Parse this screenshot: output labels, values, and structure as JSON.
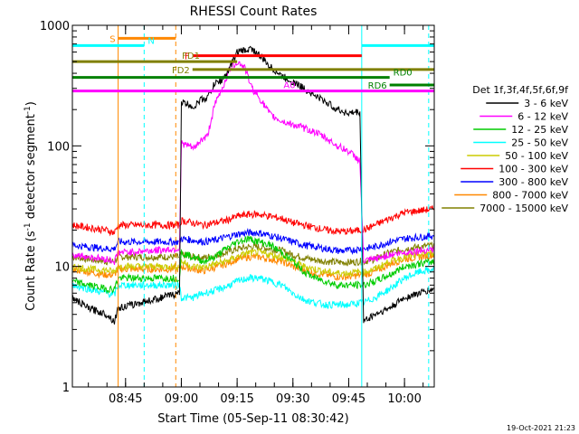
{
  "chart_data": {
    "type": "line",
    "title": "RHESSI Count Rates",
    "xlabel": "Start Time (05-Sep-11 08:30:42)",
    "ylabel": "Count Rate (s⁻¹ detector segment⁻¹)",
    "ylabel_parts": [
      "Count Rate (s",
      "-1",
      " detector segment",
      "-1",
      ")"
    ],
    "y_scale": "log",
    "ylim": [
      1,
      1000
    ],
    "xlim": [
      "08:30:42",
      "10:08:00"
    ],
    "y_ticks": [
      "1",
      "10",
      "100",
      "1000"
    ],
    "x_ticks": [
      "08:45",
      "09:00",
      "09:15",
      "09:30",
      "09:45",
      "10:00"
    ],
    "timestamp": "19-Oct-2021 21:23",
    "legend": {
      "title": "Det 1f,3f,4f,5f,6f,9f",
      "placement": "right",
      "entries": [
        {
          "name": "3 - 6 keV",
          "color": "#000000"
        },
        {
          "name": "6 - 12 keV",
          "color": "#ff00ff"
        },
        {
          "name": "12 - 25 keV",
          "color": "#00cc00"
        },
        {
          "name": "25 - 50 keV",
          "color": "#00ffff"
        },
        {
          "name": "50 - 100 keV",
          "color": "#cccc00"
        },
        {
          "name": "100 - 300 keV",
          "color": "#ff0000"
        },
        {
          "name": "300 - 800 keV",
          "color": "#0000ff"
        },
        {
          "name": "800 - 7000 keV",
          "color": "#ff8800"
        },
        {
          "name": "7000 - 15000 keV",
          "color": "#808000"
        }
      ]
    },
    "gaps": [
      [
        "08:43:30",
        "08:59:30"
      ],
      [
        "09:48:30",
        "09:48:30"
      ]
    ],
    "series": [
      {
        "name": "3 - 6 keV",
        "color": "#000000",
        "x": [
          "08:30:42",
          "08:35:00",
          "08:40:00",
          "08:42:00",
          "08:43:00",
          "08:59:30",
          "09:00:00",
          "09:02:00",
          "09:03:30",
          "09:05:00",
          "09:07:00",
          "09:09:00",
          "09:11:00",
          "09:13:00",
          "09:15:00",
          "09:17:00",
          "09:19:00",
          "09:21:00",
          "09:24:00",
          "09:27:00",
          "09:30:00",
          "09:33:00",
          "09:36:00",
          "09:39:00",
          "09:42:00",
          "09:45:00",
          "09:47:00",
          "09:48:00",
          "09:49:00",
          "09:52:00",
          "09:56:00",
          "10:00:00",
          "10:04:00",
          "10:08:00"
        ],
        "y": [
          5.5,
          4.5,
          4,
          3.5,
          4.5,
          6,
          230,
          220,
          210,
          240,
          250,
          330,
          350,
          440,
          600,
          620,
          640,
          560,
          450,
          380,
          340,
          300,
          260,
          230,
          200,
          185,
          190,
          190,
          3.5,
          4,
          4.5,
          5.5,
          6,
          6.5
        ]
      },
      {
        "name": "6 - 12 keV",
        "color": "#ff00ff",
        "x": [
          "08:30:42",
          "08:35:00",
          "08:40:00",
          "08:42:00",
          "08:43:00",
          "08:59:30",
          "09:00:00",
          "09:02:00",
          "09:03:30",
          "09:05:00",
          "09:07:00",
          "09:09:00",
          "09:11:00",
          "09:13:00",
          "09:15:00",
          "09:17:00",
          "09:19:00",
          "09:21:00",
          "09:24:00",
          "09:27:00",
          "09:30:00",
          "09:33:00",
          "09:36:00",
          "09:39:00",
          "09:42:00",
          "09:45:00",
          "09:47:00",
          "09:48:00",
          "09:49:00",
          "09:52:00",
          "09:56:00",
          "10:00:00",
          "10:04:00",
          "10:08:00"
        ],
        "y": [
          12.5,
          12,
          11.5,
          11,
          13,
          14,
          105,
          100,
          95,
          110,
          120,
          220,
          300,
          430,
          500,
          450,
          300,
          250,
          180,
          160,
          150,
          140,
          130,
          115,
          100,
          90,
          80,
          75,
          11,
          11.5,
          12.5,
          13,
          13.5,
          14
        ]
      },
      {
        "name": "12 - 25 keV",
        "color": "#00cc00",
        "x": [
          "08:30:42",
          "08:35:00",
          "08:40:00",
          "08:42:00",
          "08:43:00",
          "08:59:30",
          "09:00:00",
          "09:03:00",
          "09:06:00",
          "09:09:00",
          "09:12:00",
          "09:15:00",
          "09:18:00",
          "09:21:00",
          "09:24:00",
          "09:27:00",
          "09:30:00",
          "09:33:00",
          "09:36:00",
          "09:39:00",
          "09:42:00",
          "09:45:00",
          "09:48:00",
          "09:49:00",
          "09:52:00",
          "09:56:00",
          "10:00:00",
          "10:04:00",
          "10:08:00"
        ],
        "y": [
          7.5,
          7,
          6.5,
          6.5,
          8,
          8,
          13,
          12,
          11,
          12,
          14,
          16,
          17,
          16,
          15,
          13,
          11,
          9,
          8,
          7.5,
          7,
          7,
          7,
          7,
          7.5,
          8.5,
          10,
          10.5,
          11
        ]
      },
      {
        "name": "25 - 50 keV",
        "color": "#00ffff",
        "x": [
          "08:30:42",
          "08:35:00",
          "08:40:00",
          "08:42:00",
          "08:43:00",
          "08:59:30",
          "09:00:00",
          "09:03:00",
          "09:06:00",
          "09:09:00",
          "09:12:00",
          "09:15:00",
          "09:18:00",
          "09:21:00",
          "09:24:00",
          "09:27:00",
          "09:30:00",
          "09:33:00",
          "09:36:00",
          "09:39:00",
          "09:42:00",
          "09:45:00",
          "09:48:00",
          "09:49:00",
          "09:52:00",
          "09:56:00",
          "10:00:00",
          "10:04:00",
          "10:08:00"
        ],
        "y": [
          7,
          6.5,
          6,
          5.8,
          7,
          7,
          5.5,
          5.5,
          6,
          6.3,
          6.8,
          7.5,
          8,
          8,
          7.5,
          7,
          6,
          5.3,
          5,
          4.8,
          4.8,
          4.8,
          5,
          5,
          5.5,
          6.5,
          8,
          9,
          9.5
        ]
      },
      {
        "name": "50 - 100 keV",
        "color": "#cccc00",
        "x": [
          "08:30:42",
          "08:35:00",
          "08:40:00",
          "08:42:00",
          "08:43:00",
          "08:59:30",
          "09:00:00",
          "09:03:00",
          "09:06:00",
          "09:09:00",
          "09:12:00",
          "09:15:00",
          "09:18:00",
          "09:21:00",
          "09:24:00",
          "09:27:00",
          "09:30:00",
          "09:33:00",
          "09:36:00",
          "09:39:00",
          "09:42:00",
          "09:45:00",
          "09:48:00",
          "09:49:00",
          "09:52:00",
          "09:56:00",
          "10:00:00",
          "10:04:00",
          "10:08:00"
        ],
        "y": [
          10,
          9.5,
          9.3,
          9,
          10,
          10,
          11,
          10,
          9.8,
          10.5,
          11,
          12,
          13,
          13,
          12.5,
          12,
          11,
          10,
          9.5,
          9,
          8.8,
          8.8,
          9,
          9,
          9.5,
          11,
          12,
          12.5,
          13
        ]
      },
      {
        "name": "100 - 300 keV",
        "color": "#ff0000",
        "x": [
          "08:30:42",
          "08:35:00",
          "08:40:00",
          "08:42:00",
          "08:43:00",
          "08:59:30",
          "09:00:00",
          "09:03:00",
          "09:06:00",
          "09:09:00",
          "09:12:00",
          "09:15:00",
          "09:18:00",
          "09:21:00",
          "09:24:00",
          "09:27:00",
          "09:30:00",
          "09:33:00",
          "09:36:00",
          "09:39:00",
          "09:42:00",
          "09:45:00",
          "09:48:00",
          "09:49:00",
          "09:52:00",
          "09:56:00",
          "10:00:00",
          "10:04:00",
          "10:08:00"
        ],
        "y": [
          22,
          21,
          20,
          19,
          22,
          22,
          24,
          23,
          22,
          23,
          24,
          26,
          27,
          27,
          26,
          25,
          23,
          22,
          21,
          20,
          19.5,
          19.5,
          20,
          20,
          22,
          25,
          28,
          29,
          30
        ]
      },
      {
        "name": "300 - 800 keV",
        "color": "#0000ff",
        "x": [
          "08:30:42",
          "08:35:00",
          "08:40:00",
          "08:42:00",
          "08:43:00",
          "08:59:30",
          "09:00:00",
          "09:03:00",
          "09:06:00",
          "09:09:00",
          "09:12:00",
          "09:15:00",
          "09:18:00",
          "09:21:00",
          "09:24:00",
          "09:27:00",
          "09:30:00",
          "09:33:00",
          "09:36:00",
          "09:39:00",
          "09:42:00",
          "09:45:00",
          "09:48:00",
          "09:49:00",
          "09:52:00",
          "09:56:00",
          "10:00:00",
          "10:04:00",
          "10:08:00"
        ],
        "y": [
          15,
          14.5,
          14,
          14,
          16,
          16,
          17,
          16.5,
          16,
          16.5,
          17.5,
          18.5,
          19,
          19,
          18,
          17,
          16,
          15,
          14.5,
          14,
          13.5,
          13.5,
          14,
          14,
          14.5,
          16,
          17,
          17.5,
          18
        ]
      },
      {
        "name": "800 - 7000 keV",
        "color": "#ff8800",
        "x": [
          "08:30:42",
          "08:35:00",
          "08:40:00",
          "08:42:00",
          "08:43:00",
          "08:59:30",
          "09:00:00",
          "09:03:00",
          "09:06:00",
          "09:09:00",
          "09:12:00",
          "09:15:00",
          "09:18:00",
          "09:21:00",
          "09:24:00",
          "09:27:00",
          "09:30:00",
          "09:33:00",
          "09:36:00",
          "09:39:00",
          "09:42:00",
          "09:45:00",
          "09:48:00",
          "09:49:00",
          "09:52:00",
          "09:56:00",
          "10:00:00",
          "10:04:00",
          "10:08:00"
        ],
        "y": [
          9.5,
          9,
          8.5,
          8.5,
          9.5,
          9.5,
          10,
          9.5,
          9.2,
          9.8,
          10.5,
          11.5,
          12,
          12,
          11.5,
          11,
          10,
          9.3,
          8.8,
          8.5,
          8.2,
          8.2,
          8.5,
          8.5,
          9,
          10.5,
          11.5,
          12,
          12.5
        ]
      },
      {
        "name": "7000 - 15000 keV",
        "color": "#808000",
        "x": [
          "08:30:42",
          "08:35:00",
          "08:40:00",
          "08:42:00",
          "08:43:00",
          "08:59:30",
          "09:00:00",
          "09:03:00",
          "09:06:00",
          "09:09:00",
          "09:12:00",
          "09:15:00",
          "09:18:00",
          "09:21:00",
          "09:24:00",
          "09:27:00",
          "09:30:00",
          "09:33:00",
          "09:36:00",
          "09:39:00",
          "09:42:00",
          "09:45:00",
          "09:48:00",
          "09:49:00",
          "09:52:00",
          "09:56:00",
          "10:00:00",
          "10:04:00",
          "10:08:00"
        ],
        "y": [
          12,
          11.5,
          11,
          11,
          12,
          12,
          12.5,
          12,
          11.8,
          12.3,
          13,
          14,
          14.5,
          14.5,
          14,
          13.5,
          12.5,
          11.8,
          11.3,
          11,
          10.8,
          10.8,
          11,
          11,
          11.5,
          13,
          14,
          14.5,
          15
        ]
      }
    ],
    "vertical_markers": [
      {
        "time": "08:30:42",
        "color": "#00ffff",
        "style": "solid"
      },
      {
        "time": "08:43:00",
        "color": "#ff8800",
        "style": "solid"
      },
      {
        "time": "08:50:00",
        "color": "#00ffff",
        "style": "dashed"
      },
      {
        "time": "08:58:30",
        "color": "#ff8800",
        "style": "dashed"
      },
      {
        "time": "09:48:30",
        "color": "#00ffff",
        "style": "solid"
      },
      {
        "time": "10:06:30",
        "color": "#00ffff",
        "style": "dashed"
      }
    ],
    "flag_bars": [
      {
        "label": "S",
        "color": "#ff8800",
        "x_start": "08:43:00",
        "x_end": "08:58:30",
        "y": 780,
        "label_side": "left"
      },
      {
        "label": "N",
        "color": "#00ffff",
        "x_start": "08:30:42",
        "x_end": "08:50:00",
        "y": 680,
        "label_side": "right"
      },
      {
        "label": "N",
        "color": "#00ffff",
        "x_start": "09:48:30",
        "x_end": "10:08:00",
        "y": 680,
        "label_side": "none"
      },
      {
        "label": "F",
        "color": "#ff0000",
        "x_start": "09:03:00",
        "x_end": "09:48:30",
        "y": 560,
        "label_side": "left"
      },
      {
        "label": "FD1",
        "color": "#808000",
        "x_start": "08:30:42",
        "x_end": "09:15:00",
        "y": 500,
        "label_side": "mid"
      },
      {
        "label": "FD2",
        "color": "#808000",
        "x_start": "09:03:00",
        "x_end": "10:08:00",
        "y": 430,
        "label_side": "left"
      },
      {
        "label": "RD0",
        "color": "#008000",
        "x_start": "08:30:42",
        "x_end": "09:56:00",
        "y": 370,
        "label_side": "right"
      },
      {
        "label": "RD6",
        "color": "#008000",
        "x_start": "09:56:00",
        "x_end": "10:08:00",
        "y": 320,
        "label_side": "left"
      },
      {
        "label": "A0",
        "color": "#ff00ff",
        "x_start": "08:30:42",
        "x_end": "10:08:00",
        "y": 285,
        "label_side": "mid"
      }
    ]
  }
}
